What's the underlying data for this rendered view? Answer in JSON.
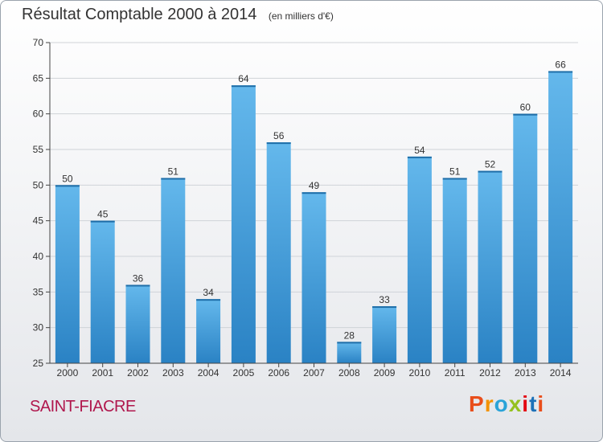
{
  "colors": {
    "bar_light": "#64b8ec",
    "bar_dark": "#2a82c4",
    "axis": "#444444",
    "grid": "#cfd3d8",
    "town": "#b0174d",
    "logo": [
      "#e94e1b",
      "#f39200",
      "#2aa3d8",
      "#95c11f",
      "#e30613",
      "#1d71b8",
      "#e94e1b"
    ]
  },
  "chart_data": {
    "type": "bar",
    "title": "Résultat Comptable 2000 à 2014",
    "unit": "(en milliers d'€)",
    "xlabel": "",
    "ylabel": "",
    "categories": [
      "2000",
      "2001",
      "2002",
      "2003",
      "2004",
      "2005",
      "2006",
      "2007",
      "2008",
      "2009",
      "2010",
      "2011",
      "2012",
      "2013",
      "2014"
    ],
    "values": [
      50,
      45,
      36,
      51,
      34,
      64,
      56,
      49,
      28,
      33,
      54,
      51,
      52,
      60,
      66
    ],
    "ylim": [
      25,
      70
    ],
    "yticks": [
      25,
      30,
      35,
      40,
      45,
      50,
      55,
      60,
      65,
      70
    ],
    "grid": true
  },
  "footer": {
    "town": "SAINT-FIACRE",
    "logo_letters": [
      "P",
      "r",
      "o",
      "x",
      "i",
      "t",
      "i"
    ]
  }
}
